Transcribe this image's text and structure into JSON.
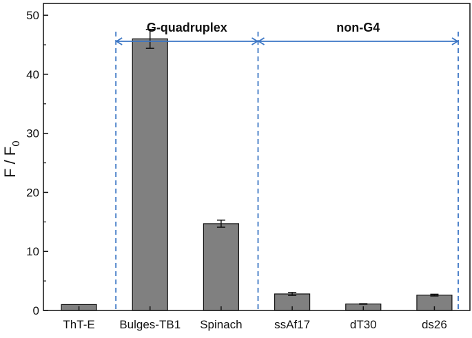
{
  "chart_data": {
    "type": "bar",
    "categories": [
      "ThT-E",
      "Bulges-TB1",
      "Spinach",
      "ssAf17",
      "dT30",
      "ds26"
    ],
    "values": [
      1.0,
      46.0,
      14.7,
      2.8,
      1.1,
      2.6
    ],
    "errors": [
      0,
      1.6,
      0.6,
      0.25,
      0.05,
      0.15
    ],
    "ylabel_main": "F / F",
    "ylabel_sub": "0",
    "xlabel": "",
    "ylim": [
      0,
      52
    ],
    "yticks": [
      0,
      10,
      20,
      30,
      40,
      50
    ],
    "bar_color": "#808080",
    "grid": false,
    "annotations": [
      {
        "text": "G-quadruplex",
        "from_category": 1,
        "to_category": 2
      },
      {
        "text": "non-G4",
        "from_category": 3,
        "to_category": 5
      }
    ],
    "annotation_color": "#3a75c4"
  }
}
